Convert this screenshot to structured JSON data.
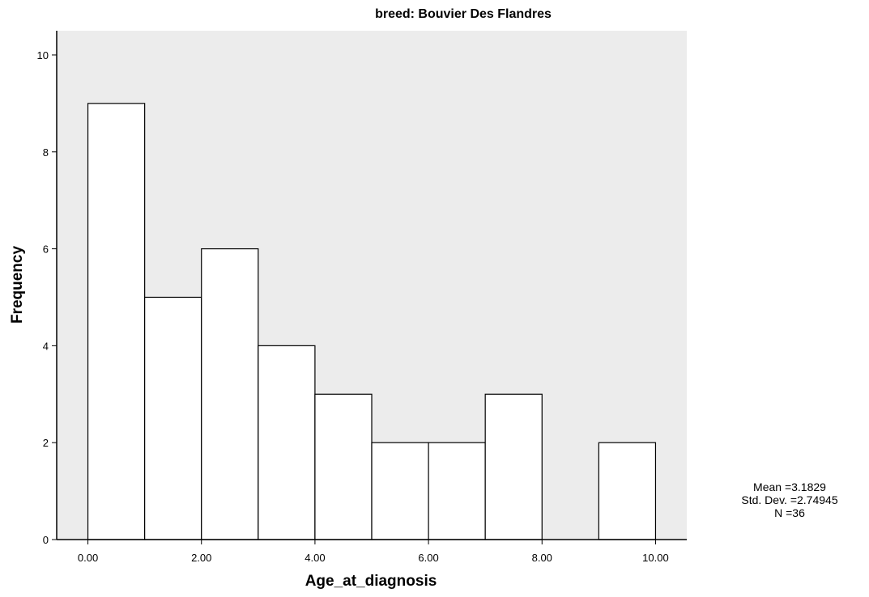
{
  "chart_data": {
    "type": "bar",
    "title": "breed: Bouvier Des Flandres",
    "xlabel": "Age_at_diagnosis",
    "ylabel": "Frequency",
    "bins": [
      {
        "from": 0,
        "to": 1,
        "count": 9
      },
      {
        "from": 1,
        "to": 2,
        "count": 5
      },
      {
        "from": 2,
        "to": 3,
        "count": 6
      },
      {
        "from": 3,
        "to": 4,
        "count": 4
      },
      {
        "from": 4,
        "to": 5,
        "count": 3
      },
      {
        "from": 5,
        "to": 6,
        "count": 2
      },
      {
        "from": 6,
        "to": 7,
        "count": 2
      },
      {
        "from": 7,
        "to": 8,
        "count": 3
      },
      {
        "from": 8,
        "to": 9,
        "count": 0
      },
      {
        "from": 9,
        "to": 10,
        "count": 2
      }
    ],
    "xlim": [
      -0.55,
      10.55
    ],
    "ylim": [
      0,
      10.5
    ],
    "xticks": [
      0,
      2,
      4,
      6,
      8,
      10
    ],
    "xtick_labels": [
      "0.00",
      "2.00",
      "4.00",
      "6.00",
      "8.00",
      "10.00"
    ],
    "yticks": [
      0,
      2,
      4,
      6,
      8,
      10
    ],
    "ytick_labels": [
      "0",
      "2",
      "4",
      "6",
      "8",
      "10"
    ],
    "grid": false,
    "plot_background": "#ececec",
    "bar_fill": "#ffffff",
    "bar_stroke": "#000000",
    "stats": {
      "mean": "Mean =3.1829",
      "std": "Std. Dev. =2.74945",
      "n": "N =36"
    }
  }
}
